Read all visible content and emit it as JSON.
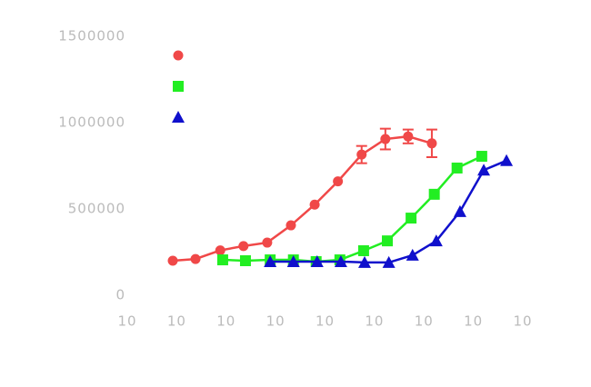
{
  "chart_data": {
    "type": "line",
    "xlim": [
      -12,
      -4
    ],
    "xticks": [
      {
        "value": -12,
        "label": "10"
      },
      {
        "value": -11,
        "label": "10"
      },
      {
        "value": -10,
        "label": "10"
      },
      {
        "value": -9,
        "label": "10"
      },
      {
        "value": -8,
        "label": "10"
      },
      {
        "value": -7,
        "label": "10"
      },
      {
        "value": -6,
        "label": "10"
      },
      {
        "value": -5,
        "label": "10"
      },
      {
        "value": -4,
        "label": "10"
      }
    ],
    "ylim": [
      0,
      1500000
    ],
    "yticks": [
      0,
      500000,
      1000000,
      1500000
    ],
    "series": [
      {
        "color": "#f04848",
        "marker": "circle",
        "x": [
          -11.08,
          -10.62,
          -10.12,
          -9.65,
          -9.17,
          -8.69,
          -8.21,
          -7.74,
          -7.26,
          -6.78,
          -6.32,
          -5.84
        ],
        "values": [
          200000,
          210000,
          260000,
          285000,
          305000,
          405000,
          525000,
          660000,
          815000,
          905000,
          920000,
          880000
        ],
        "errors": [
          null,
          null,
          null,
          null,
          null,
          null,
          null,
          null,
          50000,
          60000,
          40000,
          80000
        ]
      },
      {
        "color": "#22ee22",
        "marker": "square",
        "x": [
          -10.07,
          -9.61,
          -9.11,
          -8.64,
          -8.18,
          -7.7,
          -7.22,
          -6.74,
          -6.26,
          -5.79,
          -5.33,
          -4.83
        ],
        "values": [
          205000,
          200000,
          205000,
          205000,
          195000,
          205000,
          258000,
          315000,
          447000,
          585000,
          737000,
          805000
        ]
      },
      {
        "color": "#1010cc",
        "marker": "triangle",
        "x": [
          -9.11,
          -8.64,
          -8.16,
          -7.68,
          -7.2,
          -6.71,
          -6.23,
          -5.75,
          -5.27,
          -4.79,
          -4.33
        ],
        "values": [
          195000,
          195000,
          195000,
          195000,
          190000,
          190000,
          232000,
          315000,
          485000,
          725000,
          780000
        ]
      }
    ]
  }
}
